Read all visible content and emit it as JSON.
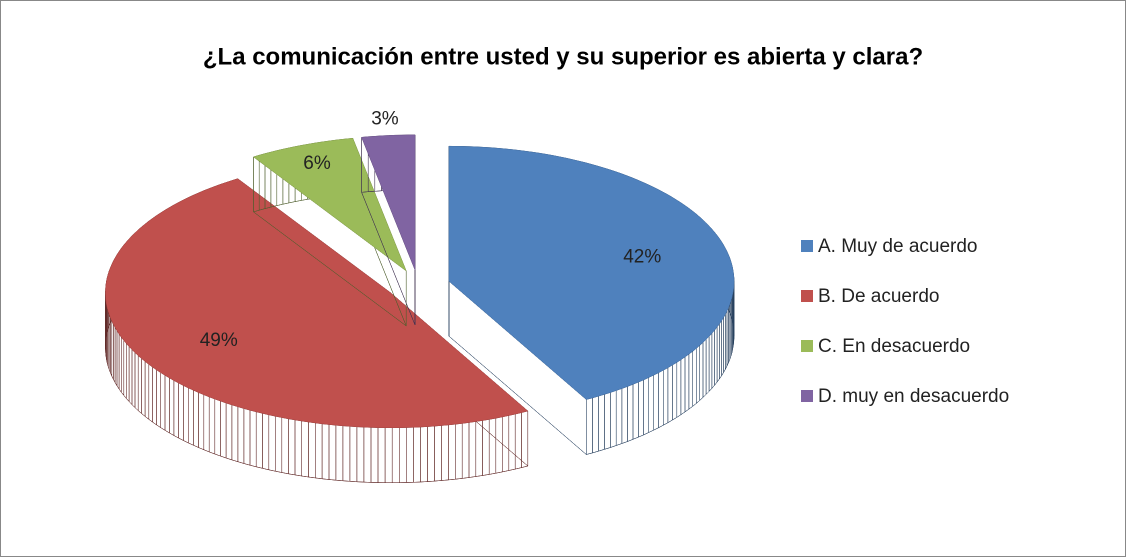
{
  "chart_data": {
    "type": "pie",
    "title": "¿La comunicación entre usted y su superior es abierta y clara?",
    "categories": [
      "A. Muy de acuerdo",
      "B. De acuerdo",
      "C. En desacuerdo",
      "D. muy en desacuerdo"
    ],
    "values": [
      42,
      49,
      6,
      3
    ],
    "value_labels": [
      "42%",
      "49%",
      "6%",
      "3%"
    ],
    "colors": [
      "#4f81bd",
      "#c0504d",
      "#9bbb59",
      "#8064a2"
    ],
    "legend": "right"
  }
}
